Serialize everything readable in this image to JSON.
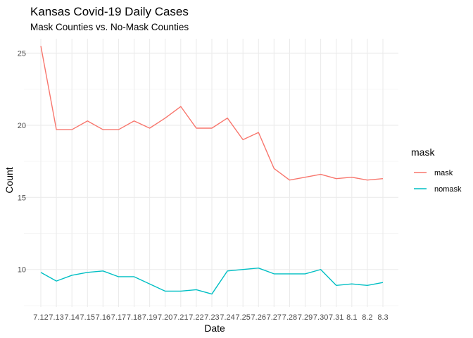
{
  "chart_data": {
    "type": "line",
    "title": "Kansas Covid-19 Daily Cases",
    "subtitle": "Mask Counties vs. No-Mask Counties",
    "xlabel": "Date",
    "ylabel": "Count",
    "categories": [
      "7.12",
      "7.13",
      "7.14",
      "7.15",
      "7.16",
      "7.17",
      "7.18",
      "7.19",
      "7.20",
      "7.21",
      "7.22",
      "7.23",
      "7.24",
      "7.25",
      "7.26",
      "7.27",
      "7.28",
      "7.29",
      "7.30",
      "7.31",
      "8.1",
      "8.2",
      "8.3"
    ],
    "yticks": [
      10,
      15,
      20,
      25
    ],
    "ylim": [
      7.4,
      26.0
    ],
    "grid": true,
    "legend": {
      "title": "mask",
      "position": "right"
    },
    "series": [
      {
        "name": "mask",
        "color": "#F8766D",
        "values": [
          25.5,
          19.7,
          19.7,
          20.3,
          19.7,
          19.7,
          20.3,
          19.8,
          20.5,
          21.3,
          19.8,
          19.8,
          20.5,
          19.0,
          19.5,
          17.0,
          16.2,
          16.4,
          16.6,
          16.3,
          16.4,
          16.2,
          16.3
        ]
      },
      {
        "name": "nomask",
        "color": "#00BFC4",
        "values": [
          9.8,
          9.2,
          9.6,
          9.8,
          9.9,
          9.5,
          9.5,
          9.0,
          8.5,
          8.5,
          8.6,
          8.3,
          9.9,
          10.0,
          10.1,
          9.7,
          9.7,
          9.7,
          10.0,
          8.9,
          9.0,
          8.9,
          9.1
        ]
      }
    ]
  }
}
